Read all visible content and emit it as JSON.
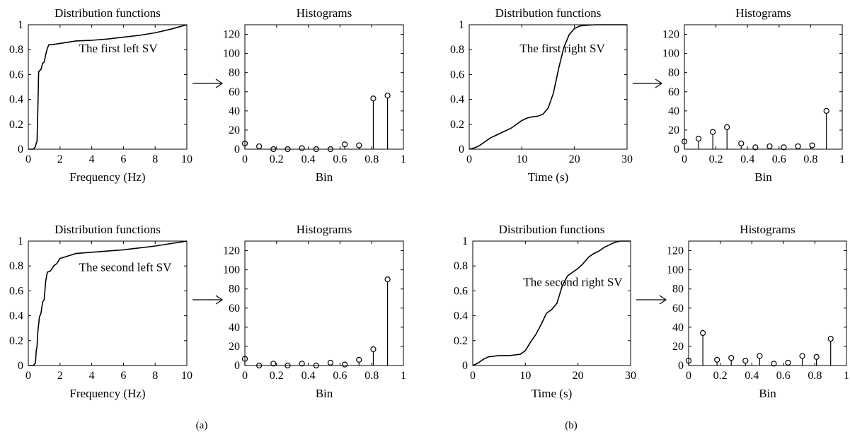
{
  "chart_data": [
    {
      "id": "a-top-cdf",
      "type": "line",
      "title": "Distribution functions",
      "xlabel": "Frequency (Hz)",
      "ylabel": "",
      "annotation": "The first left SV",
      "xlim": [
        0,
        10
      ],
      "ylim": [
        0,
        1
      ],
      "xticks": [
        "0",
        "2",
        "4",
        "6",
        "8",
        "10"
      ],
      "yticks": [
        "0",
        "0.2",
        "0.4",
        "0.6",
        "0.8",
        "1"
      ],
      "x": [
        0,
        0.3,
        0.45,
        0.5,
        0.55,
        0.6,
        0.65,
        0.7,
        0.8,
        0.9,
        1.0,
        1.1,
        1.2,
        1.3,
        1.5,
        2.0,
        3.0,
        4.0,
        5.0,
        6.0,
        7.0,
        8.0,
        9.0,
        10.0
      ],
      "y": [
        0,
        0,
        0.02,
        0.05,
        0.06,
        0.3,
        0.62,
        0.63,
        0.64,
        0.69,
        0.7,
        0.76,
        0.81,
        0.84,
        0.84,
        0.85,
        0.87,
        0.875,
        0.885,
        0.9,
        0.915,
        0.935,
        0.965,
        1.0
      ]
    },
    {
      "id": "a-top-hist",
      "type": "scatter",
      "marker": "stem-circle",
      "title": "Histograms",
      "xlabel": "Bin",
      "ylabel": "",
      "xlim": [
        0,
        1
      ],
      "ylim": [
        0,
        130
      ],
      "xticks": [
        "0",
        "0.2",
        "0.4",
        "0.6",
        "0.8",
        "1"
      ],
      "yticks": [
        "0",
        "20",
        "40",
        "60",
        "80",
        "100",
        "120"
      ],
      "x": [
        0,
        0.09,
        0.18,
        0.27,
        0.36,
        0.45,
        0.54,
        0.63,
        0.72,
        0.81,
        0.9
      ],
      "y": [
        6,
        3,
        0,
        0,
        1,
        0,
        0,
        5,
        4,
        53,
        56
      ]
    },
    {
      "id": "b-top-cdf",
      "type": "line",
      "title": "Distribution functions",
      "xlabel": "Time (s)",
      "ylabel": "",
      "annotation": "The first right SV",
      "xlim": [
        0,
        30
      ],
      "ylim": [
        0,
        1
      ],
      "xticks": [
        "0",
        "10",
        "20",
        "30"
      ],
      "yticks": [
        "0",
        "0.2",
        "0.4",
        "0.6",
        "0.8",
        "1"
      ],
      "x": [
        0,
        1,
        2,
        3,
        4,
        5,
        6,
        7,
        8,
        9,
        10,
        11,
        12,
        13,
        14,
        15,
        16,
        17,
        18,
        19,
        20,
        21,
        22,
        24,
        26,
        28,
        30
      ],
      "y": [
        0,
        0.01,
        0.03,
        0.06,
        0.09,
        0.11,
        0.13,
        0.15,
        0.17,
        0.2,
        0.23,
        0.25,
        0.26,
        0.265,
        0.28,
        0.33,
        0.45,
        0.65,
        0.82,
        0.92,
        0.97,
        0.99,
        0.995,
        1.0,
        1.0,
        1.0,
        1.0
      ]
    },
    {
      "id": "b-top-hist",
      "type": "scatter",
      "marker": "stem-circle",
      "title": "Histograms",
      "xlabel": "Bin",
      "ylabel": "",
      "xlim": [
        0,
        1
      ],
      "ylim": [
        0,
        130
      ],
      "xticks": [
        "0",
        "0.2",
        "0.4",
        "0.6",
        "0.8",
        "1"
      ],
      "yticks": [
        "0",
        "20",
        "40",
        "60",
        "80",
        "100",
        "120"
      ],
      "x": [
        0,
        0.09,
        0.18,
        0.27,
        0.36,
        0.45,
        0.54,
        0.63,
        0.72,
        0.81,
        0.9
      ],
      "y": [
        8,
        11,
        18,
        23,
        6,
        2,
        3,
        2,
        3,
        4,
        40
      ]
    },
    {
      "id": "a-bottom-cdf",
      "type": "line",
      "title": "Distribution functions",
      "xlabel": "Frequency (Hz)",
      "ylabel": "",
      "annotation": "The second left SV",
      "xlim": [
        0,
        10
      ],
      "ylim": [
        0,
        1
      ],
      "xticks": [
        "0",
        "2",
        "4",
        "6",
        "8",
        "10"
      ],
      "yticks": [
        "0",
        "0.2",
        "0.4",
        "0.6",
        "0.8",
        "1"
      ],
      "x": [
        0,
        0.3,
        0.45,
        0.5,
        0.55,
        0.6,
        0.65,
        0.7,
        0.8,
        0.9,
        1.0,
        1.1,
        1.2,
        1.4,
        1.6,
        1.8,
        2.0,
        2.5,
        3.0,
        4.0,
        5.0,
        6.0,
        7.0,
        8.0,
        9.0,
        10.0
      ],
      "y": [
        0,
        0,
        0.02,
        0.12,
        0.15,
        0.27,
        0.33,
        0.39,
        0.42,
        0.51,
        0.53,
        0.68,
        0.75,
        0.76,
        0.8,
        0.82,
        0.86,
        0.88,
        0.9,
        0.91,
        0.92,
        0.93,
        0.945,
        0.96,
        0.98,
        1.0
      ]
    },
    {
      "id": "a-bottom-hist",
      "type": "scatter",
      "marker": "stem-circle",
      "title": "Histograms",
      "xlabel": "Bin",
      "ylabel": "",
      "xlim": [
        0,
        1
      ],
      "ylim": [
        0,
        130
      ],
      "xticks": [
        "0",
        "0.2",
        "0.4",
        "0.6",
        "0.8",
        "1"
      ],
      "yticks": [
        "0",
        "20",
        "40",
        "60",
        "80",
        "100",
        "120"
      ],
      "x": [
        0,
        0.09,
        0.18,
        0.27,
        0.36,
        0.45,
        0.54,
        0.63,
        0.72,
        0.81,
        0.9
      ],
      "y": [
        7,
        0,
        2,
        0,
        2,
        0,
        3,
        1,
        6,
        17,
        90
      ]
    },
    {
      "id": "b-bottom-cdf",
      "type": "line",
      "title": "Distribution functions",
      "xlabel": "Time (s)",
      "ylabel": "",
      "annotation": "The second right SV",
      "xlim": [
        0,
        30
      ],
      "ylim": [
        0,
        1
      ],
      "xticks": [
        "0",
        "10",
        "20",
        "30"
      ],
      "yticks": [
        "0",
        "0.2",
        "0.4",
        "0.6",
        "0.8",
        "1"
      ],
      "x": [
        0,
        1,
        2,
        3,
        4,
        5,
        6,
        7,
        8,
        9,
        10,
        11,
        12,
        13,
        14,
        15,
        16,
        17,
        18,
        19,
        20,
        21,
        22,
        23,
        24,
        25,
        26,
        27,
        28,
        30
      ],
      "y": [
        0,
        0.02,
        0.05,
        0.07,
        0.075,
        0.08,
        0.08,
        0.08,
        0.085,
        0.09,
        0.12,
        0.19,
        0.25,
        0.33,
        0.42,
        0.45,
        0.5,
        0.64,
        0.72,
        0.75,
        0.78,
        0.82,
        0.87,
        0.9,
        0.92,
        0.95,
        0.97,
        0.99,
        1.0,
        1.0
      ]
    },
    {
      "id": "b-bottom-hist",
      "type": "scatter",
      "marker": "stem-circle",
      "title": "Histograms",
      "xlabel": "Bin",
      "ylabel": "",
      "xlim": [
        0,
        1
      ],
      "ylim": [
        0,
        130
      ],
      "xticks": [
        "0",
        "0.2",
        "0.4",
        "0.6",
        "0.8",
        "1"
      ],
      "yticks": [
        "0",
        "20",
        "40",
        "60",
        "80",
        "100",
        "120"
      ],
      "x": [
        0,
        0.09,
        0.18,
        0.27,
        0.36,
        0.45,
        0.54,
        0.63,
        0.72,
        0.81,
        0.9
      ],
      "y": [
        5,
        34,
        6,
        8,
        5,
        10,
        2,
        3,
        10,
        9,
        28
      ]
    }
  ],
  "panel_labels": [
    "(a)",
    "(b)"
  ]
}
